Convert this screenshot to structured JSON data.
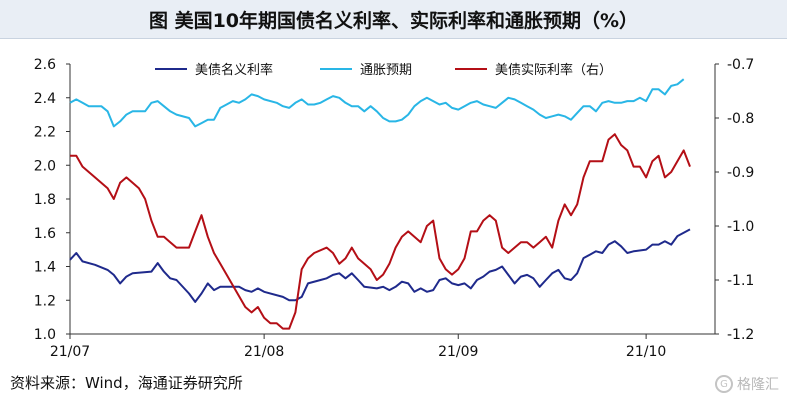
{
  "page": {
    "title": "图 美国10年期国债名义利率、实际利率和通胀预期（%）",
    "source": "资料来源：Wind，海通证券研究所",
    "watermark": "格隆汇",
    "watermark_logo": "G"
  },
  "chart_data": {
    "type": "line",
    "x_tick_labels": [
      "21/07",
      "21/08",
      "21/09",
      "21/10"
    ],
    "x_ticks_at": [
      0,
      31,
      62,
      92
    ],
    "x_range": [
      0,
      103
    ],
    "left_axis": {
      "ylim": [
        1.0,
        2.6
      ],
      "ticks": [
        "1.0",
        "1.2",
        "1.4",
        "1.6",
        "1.8",
        "2.0",
        "2.2",
        "2.4",
        "2.6"
      ]
    },
    "right_axis": {
      "ylim": [
        -1.2,
        -0.7
      ],
      "ticks": [
        "-1.2",
        "-1.1",
        "-1.0",
        "-0.9",
        "-0.8",
        "-0.7"
      ]
    },
    "legend_position": "top",
    "series": [
      {
        "name": "美债名义利率",
        "axis": "left",
        "color": "#1f2a8c",
        "points": [
          [
            0,
            1.44
          ],
          [
            1,
            1.48
          ],
          [
            2,
            1.43
          ],
          [
            4,
            1.41
          ],
          [
            6,
            1.38
          ],
          [
            7,
            1.35
          ],
          [
            8,
            1.3
          ],
          [
            9,
            1.34
          ],
          [
            10,
            1.36
          ],
          [
            13,
            1.37
          ],
          [
            14,
            1.42
          ],
          [
            15,
            1.37
          ],
          [
            16,
            1.33
          ],
          [
            17,
            1.32
          ],
          [
            19,
            1.24
          ],
          [
            20,
            1.19
          ],
          [
            21,
            1.24
          ],
          [
            22,
            1.3
          ],
          [
            23,
            1.26
          ],
          [
            24,
            1.28
          ],
          [
            27,
            1.28
          ],
          [
            28,
            1.26
          ],
          [
            29,
            1.25
          ],
          [
            30,
            1.27
          ],
          [
            31,
            1.25
          ],
          [
            34,
            1.22
          ],
          [
            35,
            1.2
          ],
          [
            36,
            1.2
          ],
          [
            37,
            1.22
          ],
          [
            38,
            1.3
          ],
          [
            40,
            1.32
          ],
          [
            41,
            1.33
          ],
          [
            42,
            1.35
          ],
          [
            43,
            1.36
          ],
          [
            44,
            1.33
          ],
          [
            45,
            1.36
          ],
          [
            46,
            1.32
          ],
          [
            47,
            1.28
          ],
          [
            49,
            1.27
          ],
          [
            50,
            1.28
          ],
          [
            51,
            1.26
          ],
          [
            52,
            1.28
          ],
          [
            53,
            1.31
          ],
          [
            54,
            1.3
          ],
          [
            55,
            1.25
          ],
          [
            56,
            1.27
          ],
          [
            57,
            1.25
          ],
          [
            58,
            1.26
          ],
          [
            59,
            1.32
          ],
          [
            60,
            1.33
          ],
          [
            61,
            1.3
          ],
          [
            62,
            1.29
          ],
          [
            63,
            1.3
          ],
          [
            64,
            1.27
          ],
          [
            65,
            1.32
          ],
          [
            66,
            1.34
          ],
          [
            67,
            1.37
          ],
          [
            68,
            1.38
          ],
          [
            69,
            1.4
          ],
          [
            70,
            1.35
          ],
          [
            71,
            1.3
          ],
          [
            72,
            1.34
          ],
          [
            73,
            1.35
          ],
          [
            74,
            1.33
          ],
          [
            75,
            1.28
          ],
          [
            76,
            1.32
          ],
          [
            77,
            1.36
          ],
          [
            78,
            1.38
          ],
          [
            79,
            1.33
          ],
          [
            80,
            1.32
          ],
          [
            81,
            1.36
          ],
          [
            82,
            1.45
          ],
          [
            83,
            1.47
          ],
          [
            84,
            1.49
          ],
          [
            85,
            1.48
          ],
          [
            86,
            1.53
          ],
          [
            87,
            1.55
          ],
          [
            88,
            1.52
          ],
          [
            89,
            1.48
          ],
          [
            90,
            1.49
          ],
          [
            92,
            1.5
          ],
          [
            93,
            1.53
          ],
          [
            94,
            1.53
          ],
          [
            95,
            1.55
          ],
          [
            96,
            1.53
          ],
          [
            97,
            1.58
          ],
          [
            98,
            1.6
          ],
          [
            99,
            1.62
          ]
        ]
      },
      {
        "name": "通胀预期",
        "axis": "left",
        "color": "#29b6e6",
        "points": [
          [
            0,
            2.37
          ],
          [
            1,
            2.39
          ],
          [
            2,
            2.37
          ],
          [
            3,
            2.35
          ],
          [
            5,
            2.35
          ],
          [
            6,
            2.32
          ],
          [
            7,
            2.23
          ],
          [
            8,
            2.26
          ],
          [
            9,
            2.3
          ],
          [
            10,
            2.32
          ],
          [
            12,
            2.32
          ],
          [
            13,
            2.37
          ],
          [
            14,
            2.38
          ],
          [
            15,
            2.35
          ],
          [
            16,
            2.32
          ],
          [
            17,
            2.3
          ],
          [
            19,
            2.28
          ],
          [
            20,
            2.23
          ],
          [
            21,
            2.25
          ],
          [
            22,
            2.27
          ],
          [
            23,
            2.27
          ],
          [
            24,
            2.34
          ],
          [
            25,
            2.36
          ],
          [
            26,
            2.38
          ],
          [
            27,
            2.37
          ],
          [
            28,
            2.39
          ],
          [
            29,
            2.42
          ],
          [
            30,
            2.41
          ],
          [
            31,
            2.39
          ],
          [
            33,
            2.37
          ],
          [
            34,
            2.35
          ],
          [
            35,
            2.34
          ],
          [
            36,
            2.37
          ],
          [
            37,
            2.39
          ],
          [
            38,
            2.36
          ],
          [
            39,
            2.36
          ],
          [
            40,
            2.37
          ],
          [
            41,
            2.39
          ],
          [
            42,
            2.41
          ],
          [
            43,
            2.4
          ],
          [
            44,
            2.37
          ],
          [
            45,
            2.35
          ],
          [
            46,
            2.35
          ],
          [
            47,
            2.32
          ],
          [
            48,
            2.35
          ],
          [
            49,
            2.32
          ],
          [
            50,
            2.28
          ],
          [
            51,
            2.26
          ],
          [
            52,
            2.26
          ],
          [
            53,
            2.27
          ],
          [
            54,
            2.3
          ],
          [
            55,
            2.35
          ],
          [
            56,
            2.38
          ],
          [
            57,
            2.4
          ],
          [
            58,
            2.38
          ],
          [
            59,
            2.36
          ],
          [
            60,
            2.37
          ],
          [
            61,
            2.34
          ],
          [
            62,
            2.33
          ],
          [
            63,
            2.35
          ],
          [
            64,
            2.37
          ],
          [
            65,
            2.38
          ],
          [
            66,
            2.36
          ],
          [
            67,
            2.35
          ],
          [
            68,
            2.34
          ],
          [
            69,
            2.37
          ],
          [
            70,
            2.4
          ],
          [
            71,
            2.39
          ],
          [
            72,
            2.37
          ],
          [
            73,
            2.35
          ],
          [
            74,
            2.33
          ],
          [
            75,
            2.3
          ],
          [
            76,
            2.28
          ],
          [
            77,
            2.29
          ],
          [
            78,
            2.3
          ],
          [
            79,
            2.29
          ],
          [
            80,
            2.27
          ],
          [
            81,
            2.31
          ],
          [
            82,
            2.35
          ],
          [
            83,
            2.35
          ],
          [
            84,
            2.32
          ],
          [
            85,
            2.37
          ],
          [
            86,
            2.38
          ],
          [
            87,
            2.37
          ],
          [
            88,
            2.37
          ],
          [
            89,
            2.38
          ],
          [
            90,
            2.38
          ],
          [
            91,
            2.4
          ],
          [
            92,
            2.38
          ],
          [
            93,
            2.45
          ],
          [
            94,
            2.45
          ],
          [
            95,
            2.42
          ],
          [
            96,
            2.47
          ],
          [
            97,
            2.48
          ],
          [
            98,
            2.51
          ]
        ]
      },
      {
        "name": "美债实际利率（右）",
        "axis": "right",
        "color": "#b40f16",
        "points": [
          [
            0,
            -0.87
          ],
          [
            1,
            -0.87
          ],
          [
            2,
            -0.89
          ],
          [
            4,
            -0.91
          ],
          [
            6,
            -0.93
          ],
          [
            7,
            -0.95
          ],
          [
            8,
            -0.92
          ],
          [
            9,
            -0.91
          ],
          [
            10,
            -0.92
          ],
          [
            11,
            -0.93
          ],
          [
            12,
            -0.95
          ],
          [
            13,
            -0.99
          ],
          [
            14,
            -1.02
          ],
          [
            15,
            -1.02
          ],
          [
            16,
            -1.03
          ],
          [
            17,
            -1.04
          ],
          [
            19,
            -1.04
          ],
          [
            20,
            -1.01
          ],
          [
            21,
            -0.98
          ],
          [
            22,
            -1.02
          ],
          [
            23,
            -1.05
          ],
          [
            24,
            -1.07
          ],
          [
            25,
            -1.09
          ],
          [
            26,
            -1.11
          ],
          [
            27,
            -1.13
          ],
          [
            28,
            -1.15
          ],
          [
            29,
            -1.16
          ],
          [
            30,
            -1.15
          ],
          [
            31,
            -1.17
          ],
          [
            32,
            -1.18
          ],
          [
            33,
            -1.18
          ],
          [
            34,
            -1.19
          ],
          [
            35,
            -1.19
          ],
          [
            36,
            -1.16
          ],
          [
            37,
            -1.08
          ],
          [
            38,
            -1.06
          ],
          [
            39,
            -1.05
          ],
          [
            41,
            -1.04
          ],
          [
            42,
            -1.05
          ],
          [
            43,
            -1.07
          ],
          [
            44,
            -1.06
          ],
          [
            45,
            -1.04
          ],
          [
            46,
            -1.06
          ],
          [
            47,
            -1.07
          ],
          [
            48,
            -1.08
          ],
          [
            49,
            -1.1
          ],
          [
            50,
            -1.09
          ],
          [
            51,
            -1.07
          ],
          [
            52,
            -1.04
          ],
          [
            53,
            -1.02
          ],
          [
            54,
            -1.01
          ],
          [
            55,
            -1.02
          ],
          [
            56,
            -1.03
          ],
          [
            57,
            -1.0
          ],
          [
            58,
            -0.99
          ],
          [
            59,
            -1.06
          ],
          [
            60,
            -1.08
          ],
          [
            61,
            -1.09
          ],
          [
            62,
            -1.08
          ],
          [
            63,
            -1.06
          ],
          [
            64,
            -1.01
          ],
          [
            65,
            -1.01
          ],
          [
            66,
            -0.99
          ],
          [
            67,
            -0.98
          ],
          [
            68,
            -0.99
          ],
          [
            69,
            -1.04
          ],
          [
            70,
            -1.05
          ],
          [
            71,
            -1.04
          ],
          [
            72,
            -1.03
          ],
          [
            73,
            -1.03
          ],
          [
            74,
            -1.04
          ],
          [
            75,
            -1.03
          ],
          [
            76,
            -1.02
          ],
          [
            77,
            -1.04
          ],
          [
            78,
            -0.99
          ],
          [
            79,
            -0.96
          ],
          [
            80,
            -0.98
          ],
          [
            81,
            -0.96
          ],
          [
            82,
            -0.91
          ],
          [
            83,
            -0.88
          ],
          [
            84,
            -0.88
          ],
          [
            85,
            -0.88
          ],
          [
            86,
            -0.84
          ],
          [
            87,
            -0.83
          ],
          [
            88,
            -0.85
          ],
          [
            89,
            -0.86
          ],
          [
            90,
            -0.89
          ],
          [
            91,
            -0.89
          ],
          [
            92,
            -0.91
          ],
          [
            93,
            -0.88
          ],
          [
            94,
            -0.87
          ],
          [
            95,
            -0.91
          ],
          [
            96,
            -0.9
          ],
          [
            97,
            -0.88
          ],
          [
            98,
            -0.86
          ],
          [
            99,
            -0.89
          ]
        ]
      }
    ]
  }
}
